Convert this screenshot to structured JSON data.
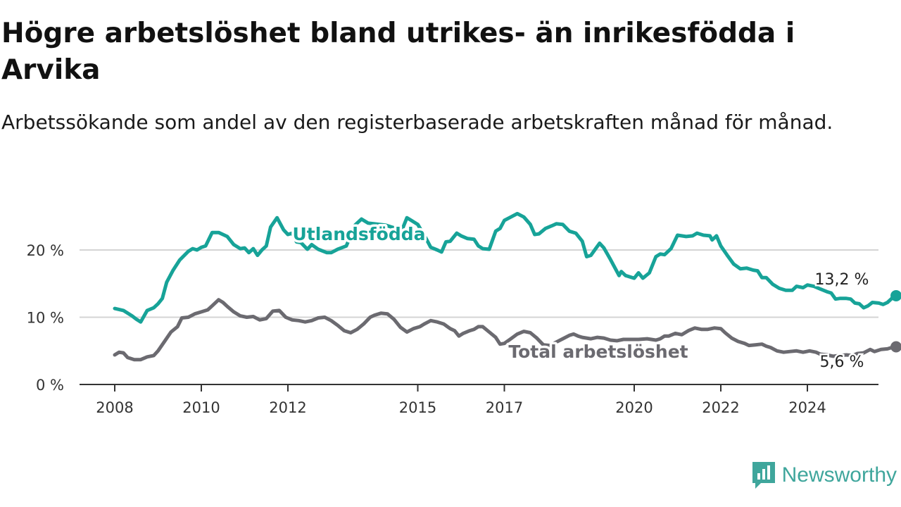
{
  "header": {
    "title": "Högre arbetslöshet bland utrikes- än inrikesfödda i Arvika",
    "subtitle": "Arbetssökande som andel av den registerbaserade arbetskraften månad för månad."
  },
  "brand": {
    "name": "Newsworthy",
    "icon": "newsworthy-logo-icon",
    "color": "#3fa69c"
  },
  "chart_data": {
    "type": "line",
    "title": "Högre arbetslöshet bland utrikes- än inrikesfödda i Arvika",
    "subtitle": "Arbetssökande som andel av den registerbaserade arbetskraften månad för månad.",
    "xlabel": "",
    "ylabel": "",
    "ylim": [
      0,
      26
    ],
    "xlim": [
      2007.7,
      2025.9
    ],
    "grid": true,
    "legend": "none (direct labels)",
    "x_ticks": [
      {
        "value": 2008,
        "label": "2008"
      },
      {
        "value": 2010,
        "label": "2010"
      },
      {
        "value": 2012,
        "label": "2012"
      },
      {
        "value": 2015,
        "label": "2015"
      },
      {
        "value": 2017,
        "label": "2017"
      },
      {
        "value": 2020,
        "label": "2020"
      },
      {
        "value": 2022,
        "label": "2022"
      },
      {
        "value": 2024,
        "label": "2024"
      }
    ],
    "y_ticks": [
      {
        "value": 0,
        "label": "0 %"
      },
      {
        "value": 10,
        "label": "10 %"
      },
      {
        "value": 20,
        "label": "20 %"
      }
    ],
    "series": [
      {
        "name": "Utlandsfödda",
        "color": "#17a398",
        "end_label": "13,2 %",
        "points": [
          [
            2008.0,
            11.3
          ],
          [
            2008.2,
            11.0
          ],
          [
            2008.4,
            10.2
          ],
          [
            2008.5,
            9.7
          ],
          [
            2008.6,
            9.3
          ],
          [
            2008.75,
            11.0
          ],
          [
            2008.9,
            11.4
          ],
          [
            2009.0,
            12.0
          ],
          [
            2009.1,
            12.8
          ],
          [
            2009.2,
            15.2
          ],
          [
            2009.35,
            17.0
          ],
          [
            2009.5,
            18.5
          ],
          [
            2009.7,
            19.8
          ],
          [
            2009.8,
            20.2
          ],
          [
            2009.9,
            20.0
          ],
          [
            2010.0,
            20.4
          ],
          [
            2010.1,
            20.6
          ],
          [
            2010.25,
            22.6
          ],
          [
            2010.4,
            22.6
          ],
          [
            2010.6,
            22.0
          ],
          [
            2010.75,
            20.8
          ],
          [
            2010.9,
            20.2
          ],
          [
            2011.0,
            20.3
          ],
          [
            2011.1,
            19.6
          ],
          [
            2011.2,
            20.2
          ],
          [
            2011.3,
            19.2
          ],
          [
            2011.4,
            20.0
          ],
          [
            2011.5,
            20.6
          ],
          [
            2011.6,
            23.4
          ],
          [
            2011.75,
            24.8
          ],
          [
            2011.9,
            23.0
          ],
          [
            2012.0,
            22.3
          ],
          [
            2012.1,
            22.5
          ],
          [
            2012.2,
            21.2
          ],
          [
            2012.3,
            21.1
          ],
          [
            2012.45,
            20.1
          ],
          [
            2012.55,
            20.8
          ],
          [
            2012.7,
            20.1
          ],
          [
            2012.9,
            19.6
          ],
          [
            2013.0,
            19.6
          ],
          [
            2013.15,
            20.1
          ],
          [
            2013.35,
            20.6
          ],
          [
            2013.55,
            23.7
          ],
          [
            2013.7,
            24.6
          ],
          [
            2013.85,
            24.0
          ],
          [
            2014.0,
            23.9
          ],
          [
            2014.25,
            23.7
          ],
          [
            2014.45,
            23.3
          ],
          [
            2014.65,
            23.2
          ],
          [
            2014.75,
            24.8
          ],
          [
            2014.85,
            24.4
          ],
          [
            2015.0,
            23.8
          ],
          [
            2015.2,
            21.6
          ],
          [
            2015.3,
            20.4
          ],
          [
            2015.45,
            20.0
          ],
          [
            2015.55,
            19.7
          ],
          [
            2015.65,
            21.2
          ],
          [
            2015.75,
            21.3
          ],
          [
            2015.9,
            22.5
          ],
          [
            2016.0,
            22.1
          ],
          [
            2016.15,
            21.7
          ],
          [
            2016.3,
            21.6
          ],
          [
            2016.4,
            20.6
          ],
          [
            2016.5,
            20.2
          ],
          [
            2016.65,
            20.1
          ],
          [
            2016.8,
            22.8
          ],
          [
            2016.9,
            23.2
          ],
          [
            2017.0,
            24.4
          ],
          [
            2017.15,
            24.9
          ],
          [
            2017.3,
            25.4
          ],
          [
            2017.45,
            24.9
          ],
          [
            2017.6,
            23.8
          ],
          [
            2017.7,
            22.3
          ],
          [
            2017.8,
            22.4
          ],
          [
            2017.95,
            23.2
          ],
          [
            2018.1,
            23.6
          ],
          [
            2018.2,
            23.9
          ],
          [
            2018.35,
            23.8
          ],
          [
            2018.5,
            22.8
          ],
          [
            2018.65,
            22.5
          ],
          [
            2018.8,
            21.3
          ],
          [
            2018.9,
            19.0
          ],
          [
            2019.0,
            19.2
          ],
          [
            2019.1,
            20.1
          ],
          [
            2019.2,
            21.0
          ],
          [
            2019.3,
            20.3
          ],
          [
            2019.45,
            18.6
          ],
          [
            2019.55,
            17.4
          ],
          [
            2019.65,
            16.2
          ],
          [
            2019.7,
            16.8
          ],
          [
            2019.8,
            16.2
          ],
          [
            2020.0,
            15.8
          ],
          [
            2020.1,
            16.6
          ],
          [
            2020.2,
            15.8
          ],
          [
            2020.35,
            16.6
          ],
          [
            2020.5,
            19.0
          ],
          [
            2020.6,
            19.4
          ],
          [
            2020.7,
            19.3
          ],
          [
            2020.85,
            20.2
          ],
          [
            2021.0,
            22.2
          ],
          [
            2021.2,
            22.0
          ],
          [
            2021.35,
            22.1
          ],
          [
            2021.45,
            22.5
          ],
          [
            2021.6,
            22.2
          ],
          [
            2021.75,
            22.1
          ],
          [
            2021.8,
            21.5
          ],
          [
            2021.9,
            22.1
          ],
          [
            2022.0,
            20.6
          ],
          [
            2022.15,
            19.2
          ],
          [
            2022.3,
            17.9
          ],
          [
            2022.45,
            17.2
          ],
          [
            2022.6,
            17.3
          ],
          [
            2022.75,
            17.0
          ],
          [
            2022.85,
            16.9
          ],
          [
            2022.95,
            15.9
          ],
          [
            2023.05,
            15.9
          ],
          [
            2023.2,
            14.9
          ],
          [
            2023.35,
            14.3
          ],
          [
            2023.5,
            14.0
          ],
          [
            2023.65,
            14.0
          ],
          [
            2023.75,
            14.6
          ],
          [
            2023.9,
            14.4
          ],
          [
            2024.0,
            14.8
          ],
          [
            2024.15,
            14.6
          ],
          [
            2024.3,
            14.2
          ],
          [
            2024.45,
            13.8
          ],
          [
            2024.55,
            13.6
          ],
          [
            2024.65,
            12.7
          ],
          [
            2024.75,
            12.8
          ],
          [
            2024.9,
            12.8
          ],
          [
            2025.0,
            12.7
          ],
          [
            2025.1,
            12.1
          ],
          [
            2025.2,
            12.0
          ],
          [
            2025.3,
            11.4
          ],
          [
            2025.4,
            11.7
          ],
          [
            2025.5,
            12.2
          ],
          [
            2025.65,
            12.1
          ],
          [
            2025.75,
            11.9
          ],
          [
            2025.85,
            12.2
          ],
          [
            2025.95,
            12.8
          ],
          [
            2026.05,
            13.2
          ]
        ]
      },
      {
        "name": "Total arbetslöshet",
        "color": "#6b6a70",
        "end_label": "5,6 %",
        "points": [
          [
            2008.0,
            4.4
          ],
          [
            2008.1,
            4.8
          ],
          [
            2008.2,
            4.7
          ],
          [
            2008.3,
            4.0
          ],
          [
            2008.45,
            3.7
          ],
          [
            2008.6,
            3.7
          ],
          [
            2008.75,
            4.1
          ],
          [
            2008.9,
            4.3
          ],
          [
            2009.0,
            5.0
          ],
          [
            2009.15,
            6.4
          ],
          [
            2009.3,
            7.8
          ],
          [
            2009.45,
            8.6
          ],
          [
            2009.55,
            9.9
          ],
          [
            2009.7,
            10.0
          ],
          [
            2009.85,
            10.5
          ],
          [
            2010.0,
            10.8
          ],
          [
            2010.15,
            11.1
          ],
          [
            2010.25,
            11.7
          ],
          [
            2010.4,
            12.6
          ],
          [
            2010.5,
            12.2
          ],
          [
            2010.6,
            11.6
          ],
          [
            2010.75,
            10.8
          ],
          [
            2010.9,
            10.2
          ],
          [
            2011.05,
            10.0
          ],
          [
            2011.2,
            10.1
          ],
          [
            2011.35,
            9.6
          ],
          [
            2011.5,
            9.8
          ],
          [
            2011.65,
            10.9
          ],
          [
            2011.8,
            11.0
          ],
          [
            2011.95,
            10.0
          ],
          [
            2012.1,
            9.6
          ],
          [
            2012.25,
            9.5
          ],
          [
            2012.4,
            9.3
          ],
          [
            2012.55,
            9.5
          ],
          [
            2012.7,
            9.9
          ],
          [
            2012.85,
            10.0
          ],
          [
            2013.0,
            9.5
          ],
          [
            2013.15,
            8.8
          ],
          [
            2013.3,
            8.0
          ],
          [
            2013.45,
            7.7
          ],
          [
            2013.6,
            8.2
          ],
          [
            2013.75,
            9.0
          ],
          [
            2013.9,
            10.0
          ],
          [
            2014.0,
            10.3
          ],
          [
            2014.15,
            10.6
          ],
          [
            2014.3,
            10.5
          ],
          [
            2014.45,
            9.7
          ],
          [
            2014.6,
            8.5
          ],
          [
            2014.75,
            7.8
          ],
          [
            2014.9,
            8.3
          ],
          [
            2015.05,
            8.6
          ],
          [
            2015.15,
            9.0
          ],
          [
            2015.3,
            9.5
          ],
          [
            2015.45,
            9.3
          ],
          [
            2015.6,
            9.0
          ],
          [
            2015.75,
            8.3
          ],
          [
            2015.85,
            8.0
          ],
          [
            2015.95,
            7.2
          ],
          [
            2016.05,
            7.6
          ],
          [
            2016.2,
            8.0
          ],
          [
            2016.3,
            8.2
          ],
          [
            2016.4,
            8.6
          ],
          [
            2016.5,
            8.6
          ],
          [
            2016.65,
            7.8
          ],
          [
            2016.8,
            7.0
          ],
          [
            2016.9,
            6.0
          ],
          [
            2017.0,
            6.1
          ],
          [
            2017.15,
            6.8
          ],
          [
            2017.3,
            7.5
          ],
          [
            2017.45,
            7.9
          ],
          [
            2017.6,
            7.7
          ],
          [
            2017.75,
            6.9
          ],
          [
            2017.9,
            5.9
          ],
          [
            2018.05,
            5.8
          ],
          [
            2018.2,
            6.3
          ],
          [
            2018.35,
            6.8
          ],
          [
            2018.5,
            7.3
          ],
          [
            2018.6,
            7.5
          ],
          [
            2018.7,
            7.2
          ],
          [
            2018.8,
            7.0
          ],
          [
            2019.0,
            6.8
          ],
          [
            2019.15,
            7.0
          ],
          [
            2019.3,
            6.9
          ],
          [
            2019.45,
            6.6
          ],
          [
            2019.6,
            6.5
          ],
          [
            2019.75,
            6.7
          ],
          [
            2019.9,
            6.7
          ],
          [
            2020.1,
            6.7
          ],
          [
            2020.3,
            6.8
          ],
          [
            2020.5,
            6.6
          ],
          [
            2020.6,
            6.8
          ],
          [
            2020.7,
            7.2
          ],
          [
            2020.8,
            7.2
          ],
          [
            2020.95,
            7.6
          ],
          [
            2021.1,
            7.4
          ],
          [
            2021.25,
            8.0
          ],
          [
            2021.4,
            8.4
          ],
          [
            2021.55,
            8.2
          ],
          [
            2021.7,
            8.2
          ],
          [
            2021.85,
            8.4
          ],
          [
            2022.0,
            8.3
          ],
          [
            2022.1,
            7.7
          ],
          [
            2022.25,
            6.9
          ],
          [
            2022.4,
            6.4
          ],
          [
            2022.55,
            6.1
          ],
          [
            2022.65,
            5.8
          ],
          [
            2022.8,
            5.9
          ],
          [
            2022.95,
            6.0
          ],
          [
            2023.05,
            5.7
          ],
          [
            2023.15,
            5.5
          ],
          [
            2023.3,
            5.0
          ],
          [
            2023.45,
            4.8
          ],
          [
            2023.6,
            4.9
          ],
          [
            2023.75,
            5.0
          ],
          [
            2023.9,
            4.8
          ],
          [
            2024.05,
            5.0
          ],
          [
            2024.2,
            4.8
          ],
          [
            2024.3,
            4.5
          ],
          [
            2024.45,
            4.4
          ],
          [
            2024.6,
            4.2
          ],
          [
            2024.75,
            4.3
          ],
          [
            2024.9,
            4.4
          ],
          [
            2025.05,
            4.3
          ],
          [
            2025.15,
            4.6
          ],
          [
            2025.3,
            4.7
          ],
          [
            2025.45,
            5.2
          ],
          [
            2025.55,
            4.9
          ],
          [
            2025.7,
            5.2
          ],
          [
            2025.85,
            5.3
          ],
          [
            2025.95,
            5.5
          ],
          [
            2026.05,
            5.6
          ]
        ]
      }
    ]
  }
}
